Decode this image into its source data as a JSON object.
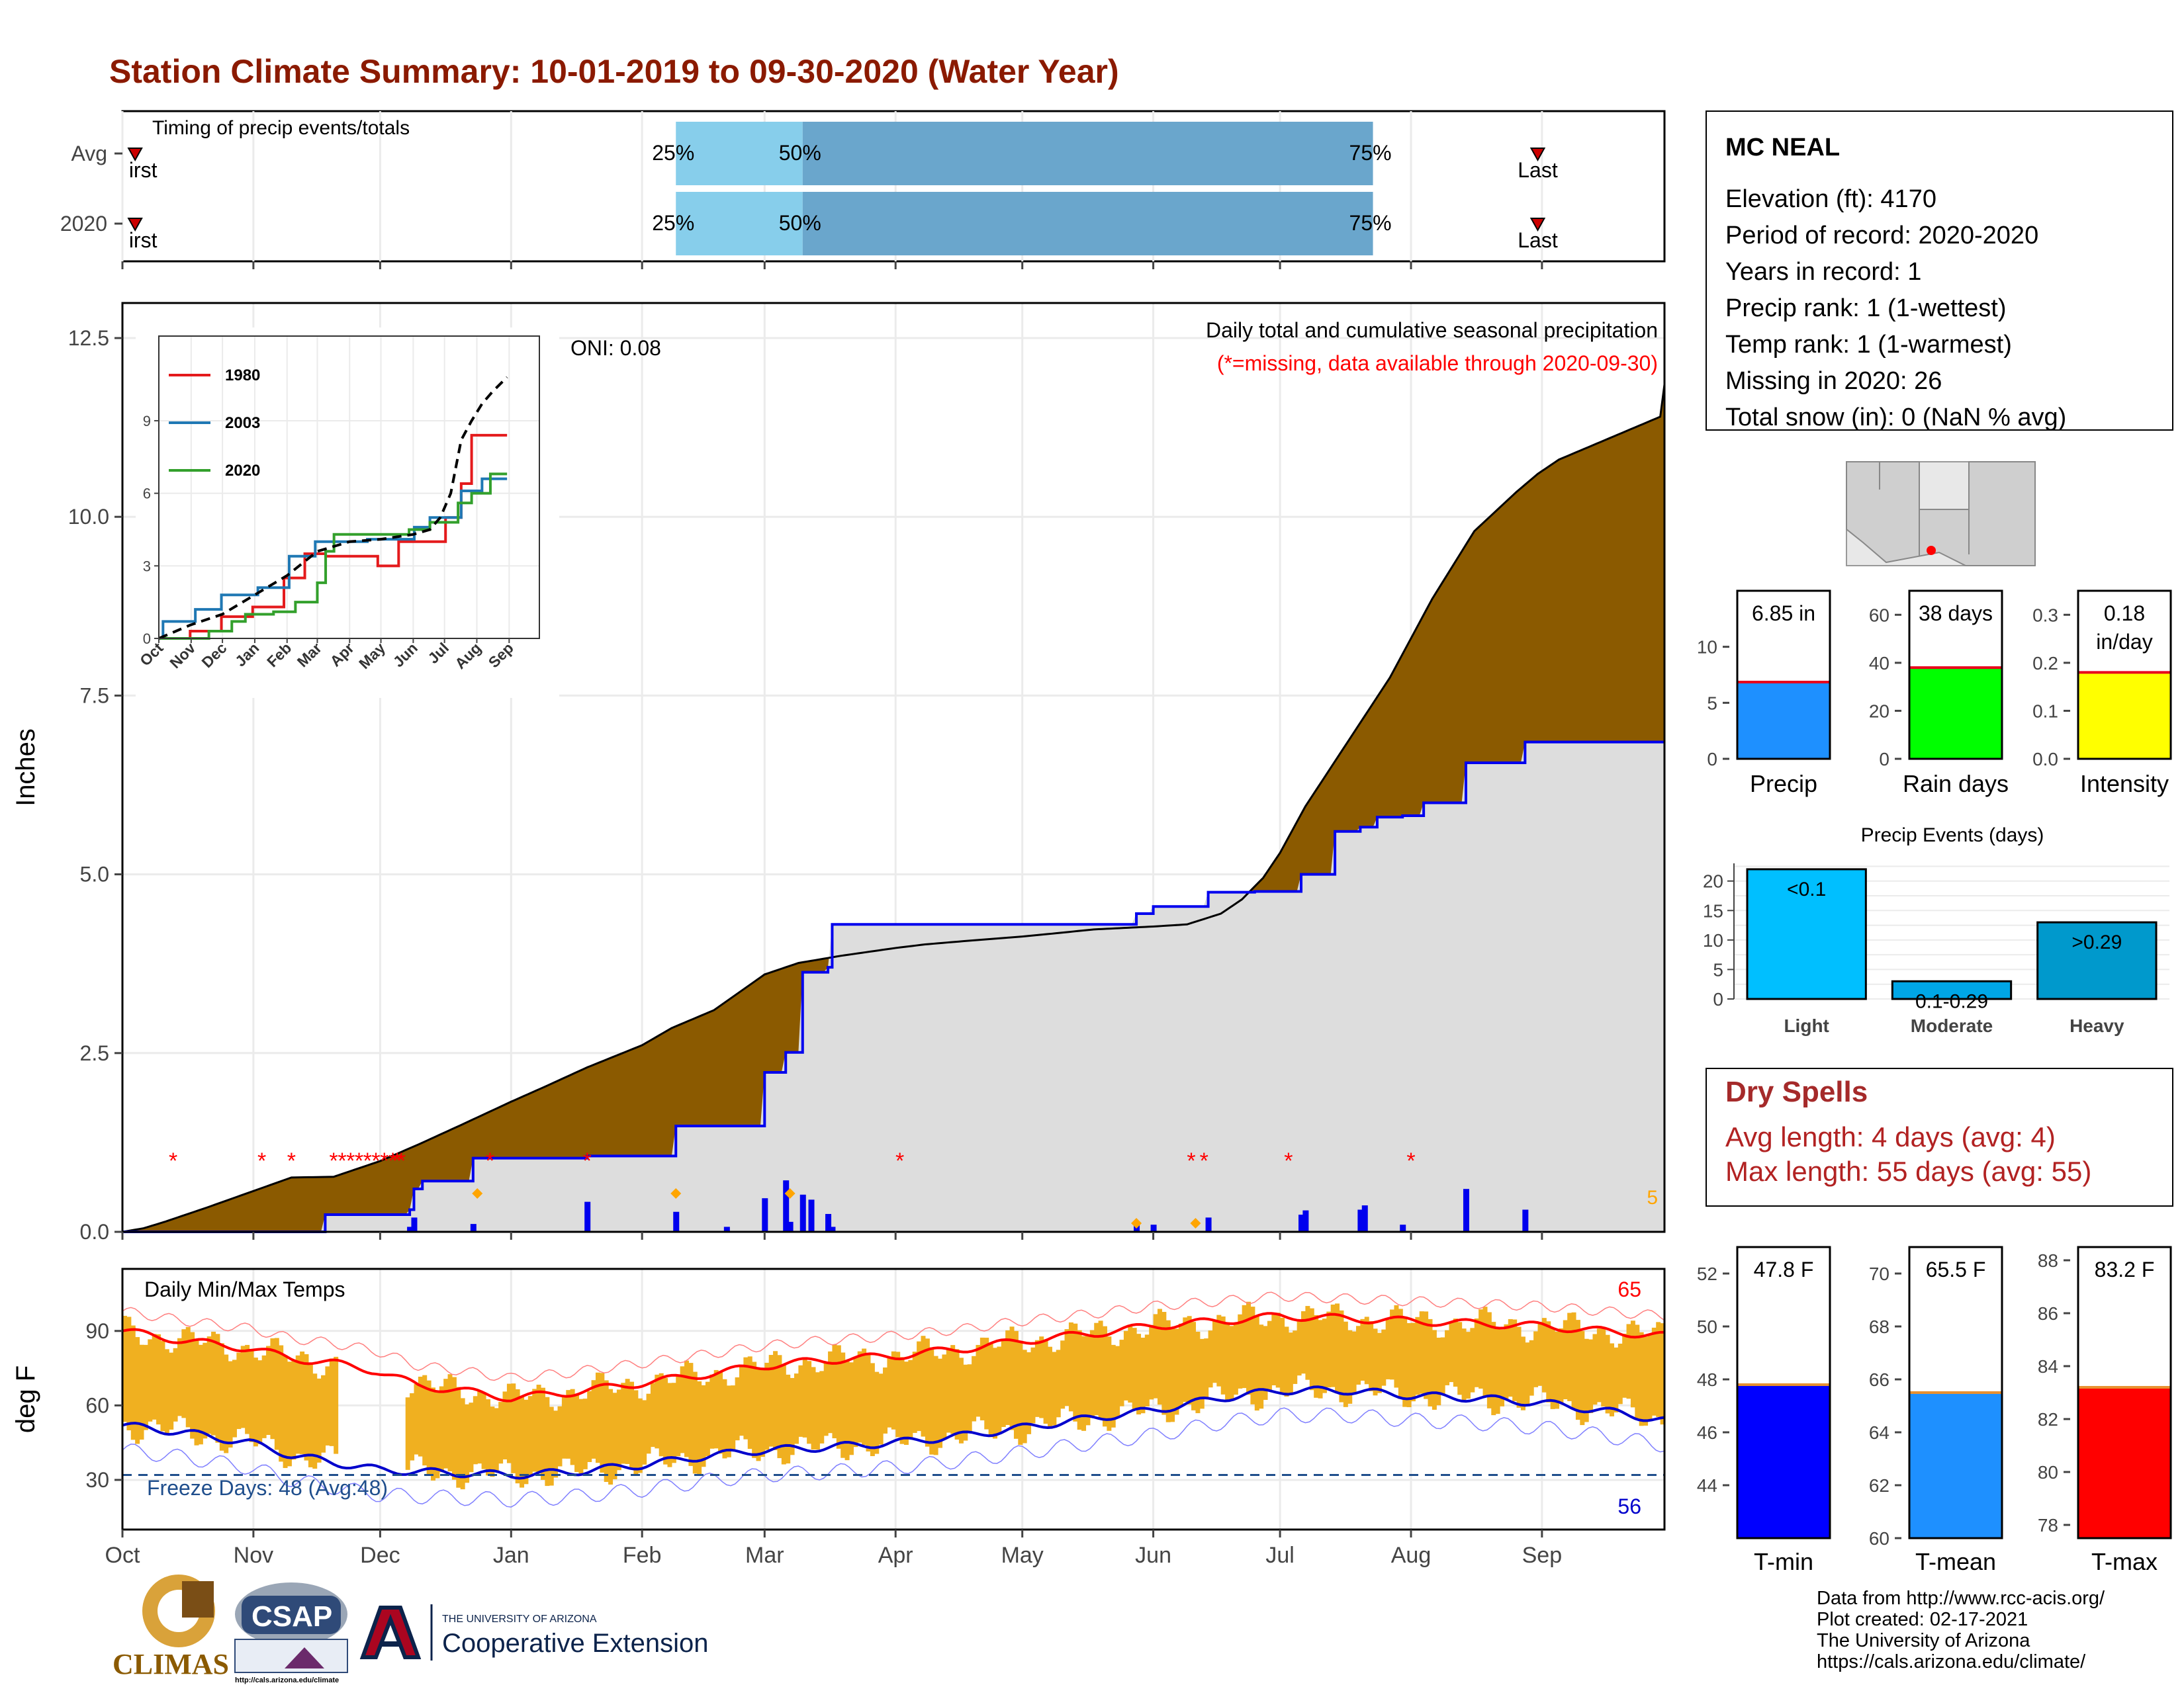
{
  "title": "Station Climate Summary: 10-01-2019 to 09-30-2020 (Water Year)",
  "colors": {
    "title": "#8b1a00",
    "cumulative_fill": "#8b5a00",
    "cumulative_line": "#000000",
    "current_line": "#0000ee",
    "current_fill": "#dddddd",
    "surplus_fill": "#007f00",
    "daily_bars": "#0000ee",
    "snow_marker": "#ffa500",
    "missing_marker": "#ff0000",
    "temp_range": "#f0b020",
    "tmax_avg": "#ff0000",
    "tmin_avg": "#0000cc",
    "freeze_line": "#1f4e8c",
    "timing_light": "#87ceeb",
    "timing_dark": "#6aa6cc"
  },
  "timing": {
    "label": "Timing of precip events/totals",
    "rows": [
      {
        "label": "Avg",
        "first": "First",
        "last": "Last",
        "p25": "25%",
        "p50": "50%",
        "p75": "75%",
        "first_day": 3,
        "p25_day": 131,
        "p50_day": 161,
        "p75_day": 296,
        "last_day": 335
      },
      {
        "label": "2020",
        "first": "First",
        "last": "Last",
        "p25": "25%",
        "p50": "50%",
        "p75": "75%",
        "first_day": 3,
        "p25_day": 131,
        "p50_day": 161,
        "p75_day": 296,
        "last_day": 335
      }
    ]
  },
  "chart_data": [
    {
      "type": "area",
      "panel": "precipitation",
      "title": "Daily total and cumulative seasonal precipitation",
      "subtitle": "(*=missing, data available through 2020-09-30)",
      "ylabel": "Inches",
      "ylim": [
        0,
        13
      ],
      "yticks": [
        "0.0",
        "2.5",
        "5.0",
        "7.5",
        "10.0",
        "12.5"
      ],
      "annotation_oni": "ONI: 0.08",
      "corner_value": "5",
      "x_unit": "day of water year (Oct 1 = 0)",
      "avg_cumulative": {
        "x": [
          0,
          5,
          10,
          20,
          30,
          40,
          50,
          61,
          70,
          80,
          92,
          100,
          110,
          123,
          130,
          140,
          152,
          160,
          170,
          183,
          190,
          200,
          213,
          220,
          230,
          244,
          252,
          260,
          265,
          270,
          274,
          280,
          290,
          300,
          310,
          320,
          330,
          335,
          340,
          350,
          360,
          364,
          365
        ],
        "y": [
          0.0,
          0.05,
          0.14,
          0.34,
          0.55,
          0.76,
          0.77,
          0.99,
          1.22,
          1.49,
          1.82,
          2.03,
          2.3,
          2.61,
          2.85,
          3.1,
          3.6,
          3.76,
          3.86,
          3.97,
          4.02,
          4.07,
          4.13,
          4.17,
          4.23,
          4.27,
          4.3,
          4.45,
          4.65,
          4.95,
          5.3,
          5.95,
          6.85,
          7.75,
          8.85,
          9.8,
          10.35,
          10.6,
          10.8,
          11.05,
          11.3,
          11.4,
          11.85
        ]
      },
      "cumulative_2020": {
        "x": [
          0,
          48,
          48,
          68,
          68,
          69,
          69,
          71,
          71,
          83,
          83,
          110,
          110,
          131,
          131,
          152,
          152,
          157,
          157,
          161,
          161,
          167,
          167,
          168,
          168,
          190,
          190,
          240,
          240,
          244,
          244,
          257,
          257,
          268,
          268,
          279,
          279,
          287,
          287,
          293,
          293,
          297,
          297,
          303,
          303,
          308,
          308,
          318,
          318,
          332,
          332,
          334,
          334,
          365
        ],
        "y": [
          0.0,
          0.0,
          0.24,
          0.24,
          0.31,
          0.31,
          0.6,
          0.6,
          0.71,
          0.71,
          1.03,
          1.03,
          1.06,
          1.06,
          1.48,
          1.48,
          2.23,
          2.23,
          2.51,
          2.51,
          3.63,
          3.63,
          3.7,
          3.7,
          4.3,
          4.3,
          4.3,
          4.3,
          4.45,
          4.45,
          4.55,
          4.55,
          4.75,
          4.75,
          4.76,
          4.76,
          5.0,
          5.0,
          5.6,
          5.6,
          5.66,
          5.66,
          5.8,
          5.8,
          5.82,
          5.82,
          6.0,
          6.0,
          6.56,
          6.56,
          6.85,
          6.85,
          6.85,
          6.85
        ]
      },
      "daily_precip": {
        "x": [
          68,
          69,
          83,
          110,
          131,
          143,
          152,
          157,
          158,
          161,
          163,
          167,
          168,
          240,
          244,
          257,
          268,
          279,
          280,
          293,
          294,
          303,
          318,
          332
        ],
        "y": [
          0.07,
          0.2,
          0.11,
          0.42,
          0.28,
          0.07,
          0.47,
          0.72,
          0.14,
          0.52,
          0.45,
          0.25,
          0.07,
          0.15,
          0.1,
          0.2,
          0.01,
          0.24,
          0.3,
          0.31,
          0.37,
          0.1,
          0.6,
          0.31
        ]
      },
      "snow_markers_day": [
        84,
        131,
        158,
        240,
        254
      ],
      "missing_markers_day": [
        12,
        33,
        40,
        50,
        52,
        54,
        56,
        58,
        60,
        62,
        64,
        65,
        66,
        87,
        110,
        184,
        253,
        256,
        276,
        305
      ]
    },
    {
      "type": "line",
      "panel": "inset",
      "xlabel_ticks": [
        "Oct",
        "Nov",
        "Dec",
        "Jan",
        "Feb",
        "Mar",
        "Apr",
        "May",
        "Jun",
        "Jul",
        "Aug",
        "Sep"
      ],
      "yticks": [
        "0",
        "3",
        "6",
        "9"
      ],
      "ylim": [
        0,
        12.5
      ],
      "series": [
        {
          "name": "1980",
          "color": "#e41a1c",
          "x": [
            0,
            30,
            30,
            60,
            60,
            90,
            90,
            120,
            120,
            140,
            140,
            160,
            160,
            210,
            210,
            230,
            230,
            275,
            275,
            290,
            290,
            300,
            300,
            334
          ],
          "y": [
            0,
            0,
            0.3,
            0.3,
            0.9,
            0.9,
            1.3,
            1.3,
            2.5,
            2.5,
            3.5,
            3.5,
            3.4,
            3.4,
            3.0,
            3.0,
            4.0,
            4.0,
            5.0,
            5.0,
            6.4,
            6.4,
            8.4,
            8.4
          ]
        },
        {
          "name": "2003",
          "color": "#1f78b4",
          "x": [
            0,
            4,
            4,
            35,
            35,
            60,
            60,
            95,
            95,
            125,
            125,
            150,
            150,
            200,
            200,
            245,
            245,
            260,
            260,
            290,
            290,
            310,
            310,
            334
          ],
          "y": [
            0,
            0,
            0.7,
            0.7,
            1.2,
            1.2,
            1.8,
            1.8,
            2.1,
            2.1,
            3.4,
            3.4,
            4.0,
            4.0,
            4.1,
            4.1,
            4.6,
            4.6,
            5.0,
            5.0,
            6.1,
            6.1,
            6.6,
            6.6
          ]
        },
        {
          "name": "2020",
          "color": "#33a02c",
          "x": [
            0,
            48,
            48,
            70,
            70,
            83,
            83,
            110,
            110,
            131,
            131,
            152,
            152,
            160,
            160,
            168,
            168,
            240,
            240,
            260,
            260,
            287,
            287,
            300,
            300,
            318,
            318,
            334
          ],
          "y": [
            0,
            0,
            0.3,
            0.3,
            0.7,
            0.7,
            1.0,
            1.0,
            1.1,
            1.1,
            1.5,
            1.5,
            2.3,
            2.3,
            3.6,
            3.6,
            4.3,
            4.3,
            4.5,
            4.5,
            4.8,
            4.8,
            5.6,
            5.6,
            6.0,
            6.0,
            6.8,
            6.8
          ]
        },
        {
          "name": "",
          "color": "#000000",
          "dashed": true,
          "x": [
            0,
            30,
            61,
            92,
            123,
            152,
            183,
            213,
            244,
            260,
            270,
            280,
            290,
            300,
            310,
            320,
            334
          ],
          "y": [
            0,
            0.55,
            1.0,
            1.8,
            2.6,
            3.6,
            4.0,
            4.1,
            4.3,
            4.5,
            5.0,
            6.0,
            8.2,
            9.0,
            9.7,
            10.2,
            10.8
          ]
        }
      ]
    },
    {
      "type": "line",
      "panel": "temperature",
      "title": "Daily Min/Max Temps",
      "ylabel": "deg F",
      "ylim": [
        10,
        115
      ],
      "yticks": [
        "30",
        "60",
        "90"
      ],
      "xticks": [
        "Oct",
        "Nov",
        "Dec",
        "Jan",
        "Feb",
        "Mar",
        "Apr",
        "May",
        "Jun",
        "Jul",
        "Aug",
        "Sep"
      ],
      "xtick_days": [
        0,
        31,
        61,
        92,
        123,
        152,
        183,
        213,
        244,
        274,
        305,
        336
      ],
      "freeze_line": 32,
      "freeze_label": "Freeze Days: 48 (Avg:48)",
      "record_high_count": "65",
      "record_low_count": "56",
      "avg_tmax": {
        "x": [
          0,
          15,
          30,
          40,
          50,
          60,
          70,
          80,
          92,
          105,
          123,
          140,
          152,
          165,
          183,
          200,
          213,
          230,
          244,
          260,
          274,
          290,
          305,
          320,
          336,
          350,
          365
        ],
        "y": [
          90,
          86,
          83,
          79,
          77,
          74,
          68,
          66,
          63,
          65,
          69,
          73,
          76,
          78,
          80,
          83,
          86,
          89,
          92,
          94,
          96,
          95,
          94,
          93,
          92,
          90,
          88
        ]
      },
      "avg_tmin": {
        "x": [
          0,
          15,
          30,
          40,
          50,
          61,
          75,
          92,
          105,
          123,
          140,
          152,
          165,
          183,
          200,
          213,
          230,
          244,
          260,
          274,
          290,
          305,
          320,
          336,
          350,
          365
        ],
        "y": [
          52,
          49,
          45,
          40,
          37,
          34,
          33,
          32,
          33,
          36,
          40,
          42,
          43,
          45,
          48,
          51,
          55,
          58,
          63,
          66,
          66,
          64,
          63,
          61,
          58,
          54
        ]
      }
    },
    {
      "type": "bar",
      "panel": "precip-gauge",
      "value_label": "6.85 in",
      "category": "Precip",
      "value": 6.85,
      "avg": 6.85,
      "ylim": [
        0,
        15
      ],
      "yticks": [
        "0",
        "5",
        "10"
      ],
      "color": "#1e90ff"
    },
    {
      "type": "bar",
      "panel": "rain-days-gauge",
      "value_label": "38 days",
      "category": "Rain days",
      "value": 38,
      "avg": 38,
      "ylim": [
        0,
        70
      ],
      "yticks": [
        "0",
        "20",
        "40",
        "60"
      ],
      "color": "#00ff00"
    },
    {
      "type": "bar",
      "panel": "intensity-gauge",
      "value_label": "0.18 in/day",
      "category": "Intensity",
      "value": 0.18,
      "avg": 0.18,
      "ylim": [
        0,
        0.35
      ],
      "yticks": [
        "0.0",
        "0.1",
        "0.2",
        "0.3"
      ],
      "color": "#ffff00"
    },
    {
      "type": "bar",
      "panel": "precip-events",
      "title": "Precip Events (days)",
      "categories": [
        "Light",
        "Moderate",
        "Heavy"
      ],
      "bar_labels": [
        "<0.1",
        "0.1-0.29",
        ">0.29"
      ],
      "values": [
        22,
        3,
        13
      ],
      "ylim": [
        0,
        23
      ],
      "yticks": [
        "0",
        "5",
        "10",
        "15",
        "20"
      ],
      "colors": [
        "#00bfff",
        "#00a6e6",
        "#0099cc"
      ]
    },
    {
      "type": "bar",
      "panel": "tmin-gauge",
      "value_label": "47.8 F",
      "category": "T-min",
      "value": 47.8,
      "avg": 47.8,
      "ylim": [
        42,
        53
      ],
      "yticks": [
        "44",
        "46",
        "48",
        "50",
        "52"
      ],
      "color": "#0000ff"
    },
    {
      "type": "bar",
      "panel": "tmean-gauge",
      "value_label": "65.5 F",
      "category": "T-mean",
      "value": 65.5,
      "avg": 65.5,
      "ylim": [
        60,
        71
      ],
      "yticks": [
        "60",
        "62",
        "64",
        "66",
        "68",
        "70"
      ],
      "color": "#1e90ff"
    },
    {
      "type": "bar",
      "panel": "tmax-gauge",
      "value_label": "83.2 F",
      "category": "T-max",
      "value": 83.2,
      "avg": 83.2,
      "ylim": [
        77.5,
        88.5
      ],
      "yticks": [
        "78",
        "80",
        "82",
        "84",
        "86",
        "88"
      ],
      "color": "#ff0000"
    }
  ],
  "station": {
    "name": "MC NEAL",
    "lines": [
      "Elevation (ft): 4170",
      "Period of record: 2020-2020",
      "Years in record: 1",
      "Precip rank: 1 (1-wettest)",
      "Temp rank: 1 (1-warmest)",
      "Missing in 2020: 26",
      "Total snow (in): 0 (NaN % avg)"
    ]
  },
  "dry_spells": {
    "title": "Dry Spells",
    "avg": "Avg length: 4 days (avg: 4)",
    "max": "Max length: 55 days (avg: 55)"
  },
  "footer": {
    "lines": [
      "Data from http://www.rcc-acis.org/",
      "Plot created: 02-17-2021",
      "The University of Arizona",
      "https://cals.arizona.edu/climate/"
    ]
  },
  "logos": {
    "climas": "CLIMAS",
    "csap": "CSAP",
    "csap_url": "http://cals.arizona.edu/climate",
    "ua_small": "THE UNIVERSITY OF ARIZONA",
    "ua_big": "Cooperative Extension"
  }
}
